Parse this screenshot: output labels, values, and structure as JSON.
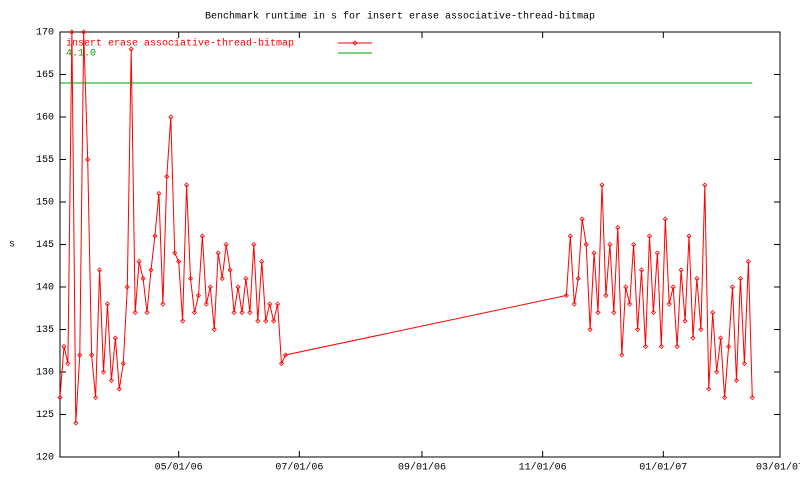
{
  "chart_data": {
    "type": "line",
    "title": "Benchmark runtime in s for insert erase associative-thread-bitmap",
    "ylabel": "s",
    "xlim": [
      "03/02/06",
      "03/01/07"
    ],
    "xticks": [
      "05/01/06",
      "07/01/06",
      "09/01/06",
      "11/01/06",
      "01/01/07",
      "03/01/07"
    ],
    "ylim": [
      120,
      170
    ],
    "yticks": [
      120,
      125,
      130,
      135,
      140,
      145,
      150,
      155,
      160,
      165,
      170
    ],
    "legend": "upper-left",
    "series": [
      {
        "name": "insert erase associative-thread-bitmap",
        "color": "#ff0000",
        "markers": true,
        "x": [
          "03/02/06",
          "03/04/06",
          "03/06/06",
          "03/08/06",
          "03/10/06",
          "03/12/06",
          "03/14/06",
          "03/16/06",
          "03/18/06",
          "03/20/06",
          "03/22/06",
          "03/24/06",
          "03/26/06",
          "03/28/06",
          "03/30/06",
          "04/01/06",
          "04/03/06",
          "04/05/06",
          "04/07/06",
          "04/09/06",
          "04/11/06",
          "04/13/06",
          "04/15/06",
          "04/17/06",
          "04/19/06",
          "04/21/06",
          "04/23/06",
          "04/25/06",
          "04/27/06",
          "04/29/06",
          "05/01/06",
          "05/03/06",
          "05/05/06",
          "05/07/06",
          "05/09/06",
          "05/11/06",
          "05/13/06",
          "05/15/06",
          "05/17/06",
          "05/19/06",
          "05/21/06",
          "05/23/06",
          "05/25/06",
          "05/27/06",
          "05/29/06",
          "05/31/06",
          "06/02/06",
          "06/04/06",
          "06/06/06",
          "06/08/06",
          "06/10/06",
          "06/12/06",
          "06/14/06",
          "06/16/06",
          "06/18/06",
          "06/20/06",
          "06/22/06",
          "06/24/06",
          "11/13/06",
          "11/15/06",
          "11/17/06",
          "11/19/06",
          "11/21/06",
          "11/23/06",
          "11/25/06",
          "11/27/06",
          "11/29/06",
          "12/01/06",
          "12/03/06",
          "12/05/06",
          "12/07/06",
          "12/09/06",
          "12/11/06",
          "12/13/06",
          "12/15/06",
          "12/17/06",
          "12/19/06",
          "12/21/06",
          "12/23/06",
          "12/25/06",
          "12/27/06",
          "12/29/06",
          "12/31/06",
          "01/02/07",
          "01/04/07",
          "01/06/07",
          "01/08/07",
          "01/10/07",
          "01/12/07",
          "01/14/07",
          "01/16/07",
          "01/18/07",
          "01/20/07",
          "01/22/07",
          "01/24/07",
          "01/26/07",
          "01/28/07",
          "01/30/07",
          "02/01/07",
          "02/03/07",
          "02/05/07",
          "02/07/07",
          "02/09/07",
          "02/11/07",
          "02/13/07",
          "02/15/07"
        ],
        "values": [
          127,
          133,
          131,
          170,
          124,
          132,
          170,
          155,
          132,
          127,
          142,
          130,
          138,
          129,
          134,
          128,
          131,
          140,
          168,
          137,
          143,
          141,
          137,
          142,
          146,
          151,
          138,
          153,
          160,
          144,
          143,
          136,
          152,
          141,
          137,
          139,
          146,
          138,
          140,
          135,
          144,
          141,
          145,
          142,
          137,
          140,
          137,
          141,
          137,
          145,
          136,
          143,
          136,
          138,
          136,
          138,
          131,
          132,
          139,
          146,
          138,
          141,
          148,
          145,
          135,
          144,
          137,
          152,
          139,
          145,
          137,
          147,
          132,
          140,
          138,
          145,
          135,
          142,
          133,
          146,
          137,
          144,
          133,
          148,
          138,
          140,
          133,
          142,
          136,
          146,
          134,
          141,
          135,
          152,
          128,
          137,
          130,
          134,
          127,
          133,
          140,
          129,
          141,
          131,
          143,
          127
        ]
      },
      {
        "name": "4.1.0",
        "color": "#00a000",
        "markers": false,
        "x": [
          "03/02/06",
          "02/15/07"
        ],
        "values": [
          164,
          164
        ]
      }
    ]
  }
}
